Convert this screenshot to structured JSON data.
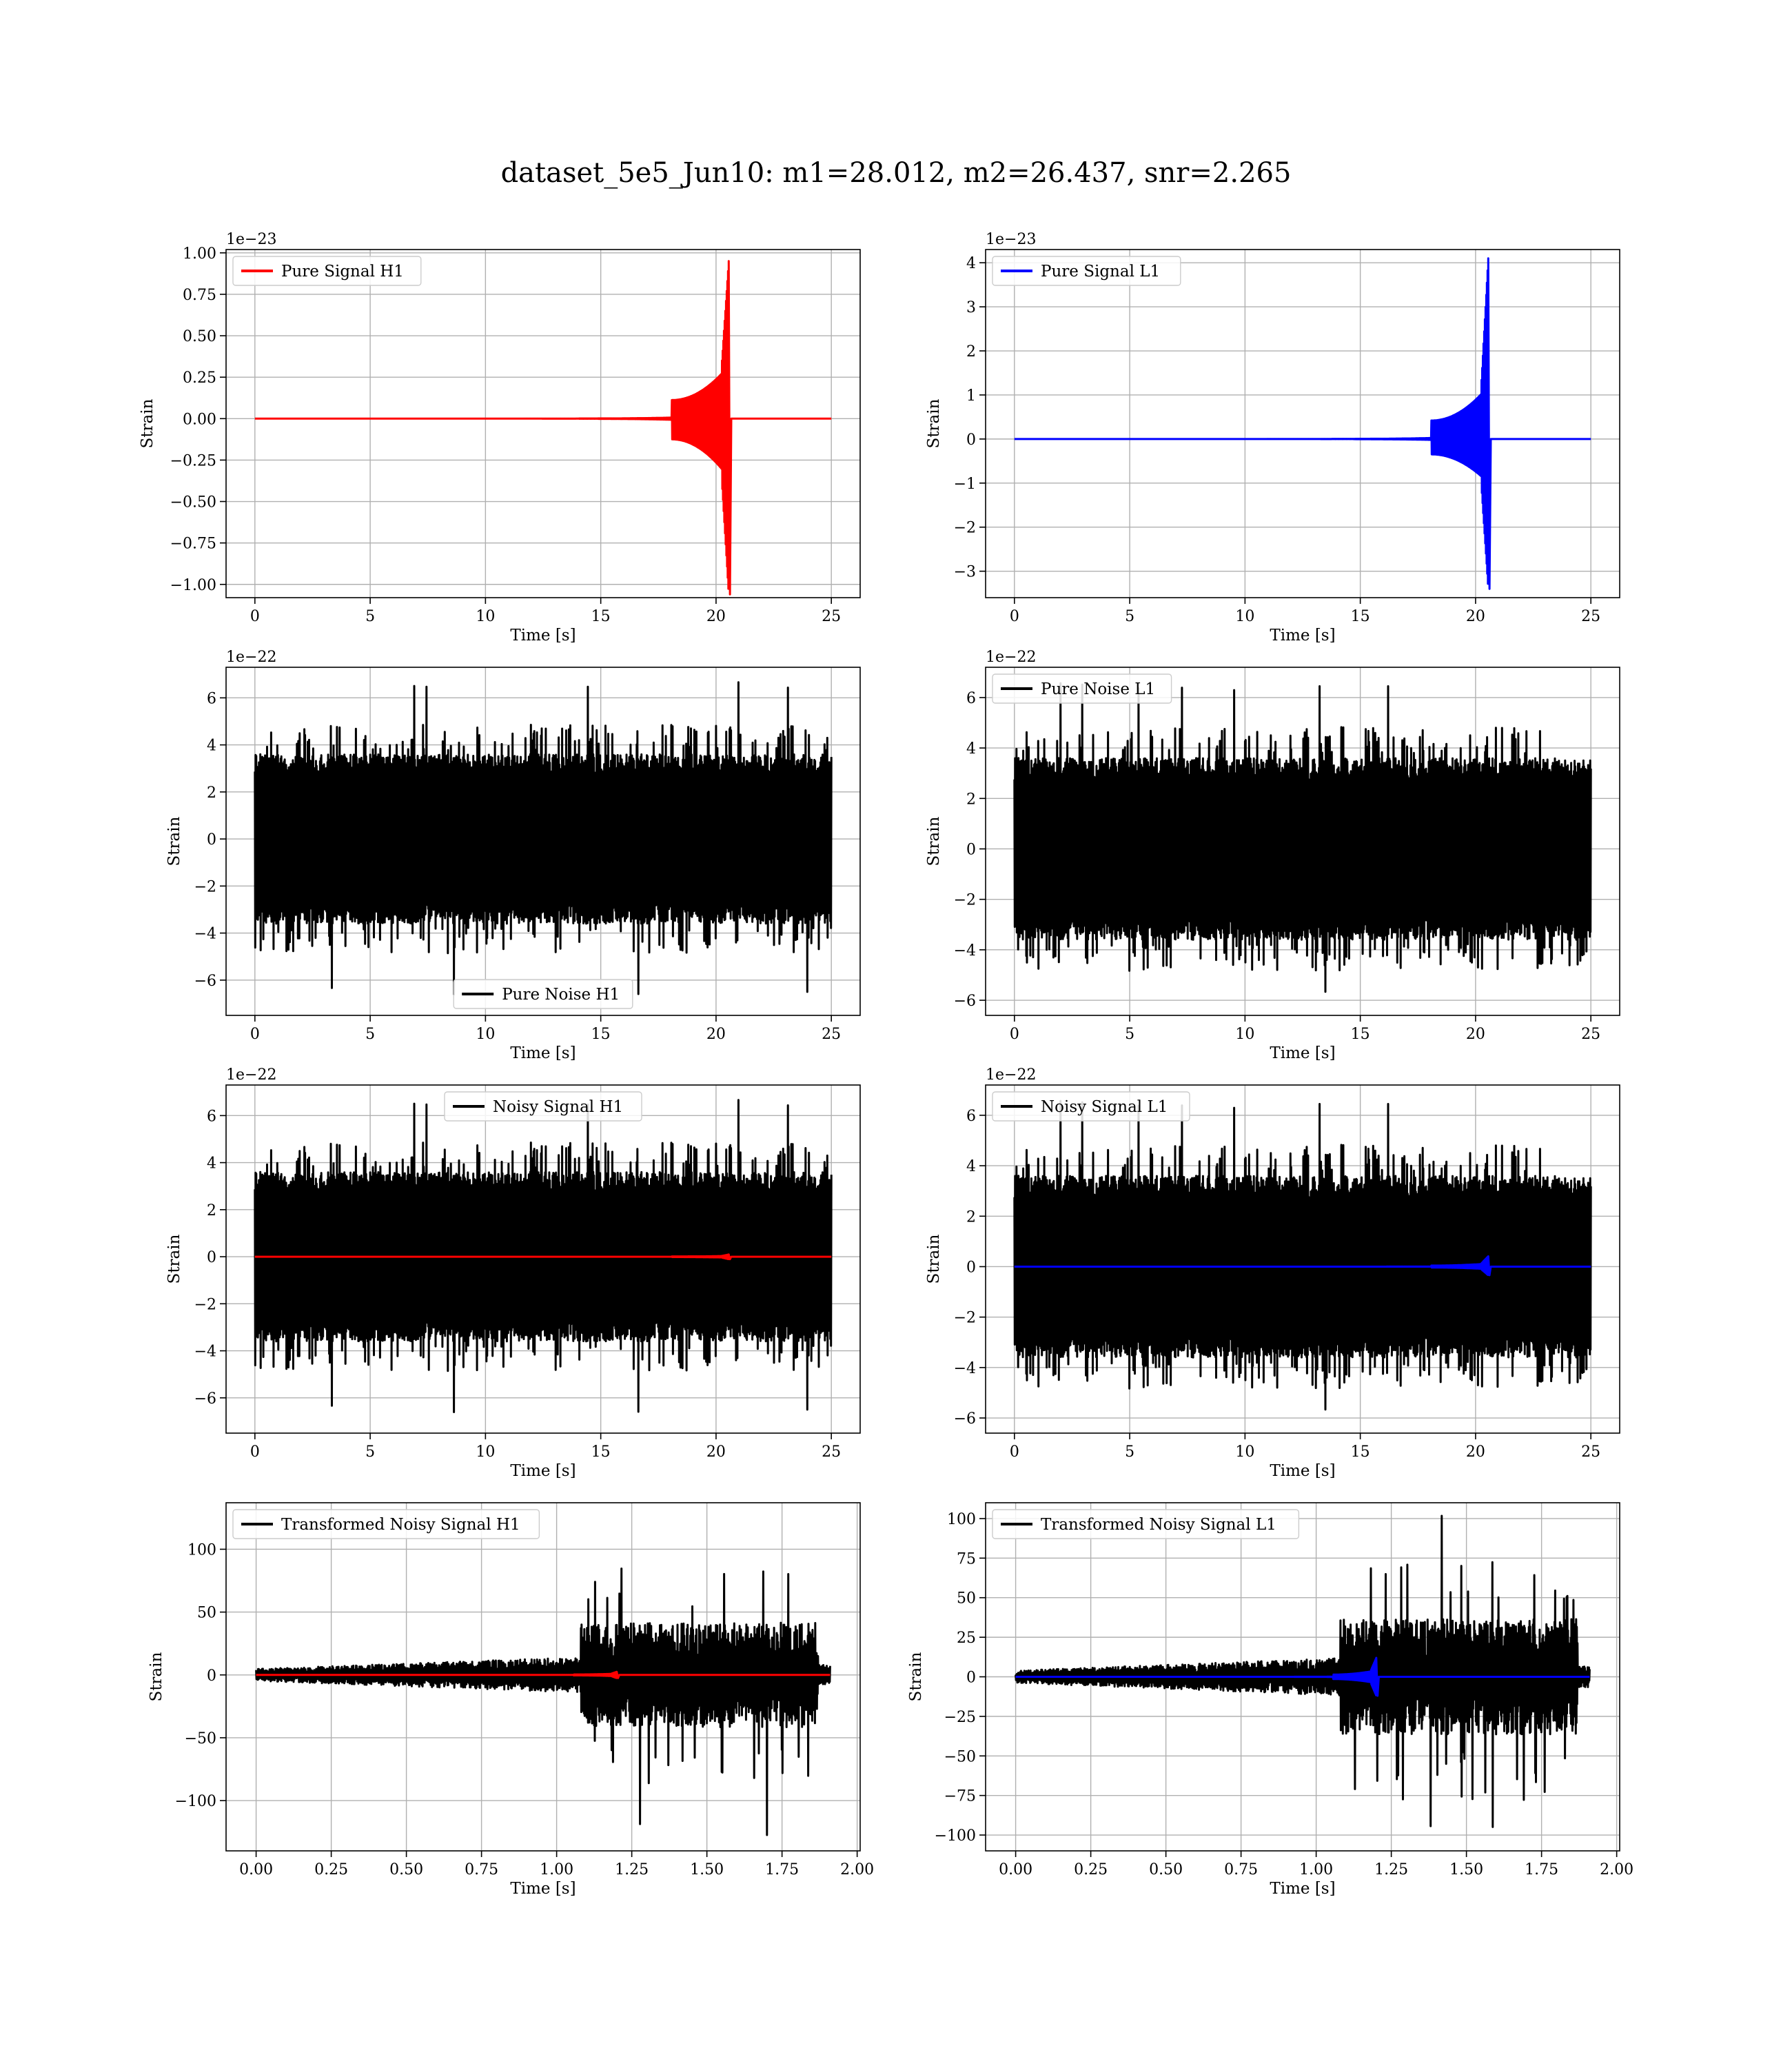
{
  "figure": {
    "title": "dataset_5e5_Jun10: m1=28.012, m2=26.437, snr=2.265",
    "background": "#ffffff"
  },
  "chart_data": [
    {
      "id": "pure-signal-h1",
      "type": "line",
      "xlabel": "Time [s]",
      "ylabel": "Strain",
      "offset_text": "1e−23",
      "xlim": [
        -1.25,
        26.25
      ],
      "ylim": [
        -1.08,
        1.02
      ],
      "xticks": [
        0,
        5,
        10,
        15,
        20,
        25
      ],
      "yticks": [
        1.0,
        0.75,
        0.5,
        0.25,
        0.0,
        -0.25,
        -0.5,
        -0.75,
        -1.0
      ],
      "ytick_labels": [
        "1.00",
        "0.75",
        "0.50",
        "0.25",
        "0.00",
        "−0.25",
        "−0.50",
        "−0.75",
        "−1.00"
      ],
      "grid": true,
      "legend": {
        "position": "upper left"
      },
      "series": [
        {
          "name": "Pure Signal H1",
          "color": "#ff0000",
          "kind": "chirp",
          "x_start": 0,
          "x_end": 25,
          "merger_time": 20.55,
          "peak_pos": 0.95,
          "peak_neg": -1.06,
          "inspiral_amp": 0.32
        }
      ]
    },
    {
      "id": "pure-signal-l1",
      "type": "line",
      "xlabel": "Time [s]",
      "ylabel": "Strain",
      "offset_text": "1e−23",
      "xlim": [
        -1.25,
        26.25
      ],
      "ylim": [
        -3.6,
        4.3
      ],
      "xticks": [
        0,
        5,
        10,
        15,
        20,
        25
      ],
      "yticks": [
        4,
        3,
        2,
        1,
        0,
        -1,
        -2,
        -3
      ],
      "ytick_labels": [
        "4",
        "3",
        "2",
        "1",
        "0",
        "−1",
        "−2",
        "−3"
      ],
      "grid": true,
      "legend": {
        "position": "upper left"
      },
      "series": [
        {
          "name": "Pure Signal L1",
          "color": "#0000ff",
          "kind": "chirp",
          "x_start": 0,
          "x_end": 25,
          "merger_time": 20.55,
          "peak_pos": 4.1,
          "peak_neg": -3.4,
          "inspiral_amp": 1.2
        }
      ]
    },
    {
      "id": "pure-noise-h1",
      "type": "line",
      "xlabel": "Time [s]",
      "ylabel": "Strain",
      "offset_text": "1e−22",
      "xlim": [
        -1.25,
        26.25
      ],
      "ylim": [
        -7.5,
        7.3
      ],
      "xticks": [
        0,
        5,
        10,
        15,
        20,
        25
      ],
      "yticks": [
        6,
        4,
        2,
        0,
        -2,
        -4,
        -6
      ],
      "ytick_labels": [
        "6",
        "4",
        "2",
        "0",
        "−2",
        "−4",
        "−6"
      ],
      "grid": true,
      "legend": {
        "position": "lower center"
      },
      "series": [
        {
          "name": "Pure Noise H1",
          "color": "#000000",
          "kind": "noise",
          "x_start": 0,
          "x_end": 25,
          "band": 3.6,
          "spike_max": 6.9,
          "spike_min": -6.7,
          "seed": 11
        }
      ]
    },
    {
      "id": "pure-noise-l1",
      "type": "line",
      "xlabel": "Time [s]",
      "ylabel": "Strain",
      "offset_text": "1e−22",
      "xlim": [
        -1.25,
        26.25
      ],
      "ylim": [
        -6.6,
        7.2
      ],
      "xticks": [
        0,
        5,
        10,
        15,
        20,
        25
      ],
      "yticks": [
        6,
        4,
        2,
        0,
        -2,
        -4,
        -6
      ],
      "ytick_labels": [
        "6",
        "4",
        "2",
        "0",
        "−2",
        "−4",
        "−6"
      ],
      "grid": true,
      "legend": {
        "position": "upper left"
      },
      "series": [
        {
          "name": "Pure Noise L1",
          "color": "#000000",
          "kind": "noise",
          "x_start": 0,
          "x_end": 25,
          "band": 3.6,
          "spike_max": 6.6,
          "spike_min": -5.9,
          "seed": 23
        }
      ]
    },
    {
      "id": "noisy-signal-h1",
      "type": "line",
      "xlabel": "Time [s]",
      "ylabel": "Strain",
      "offset_text": "1e−22",
      "xlim": [
        -1.25,
        26.25
      ],
      "ylim": [
        -7.5,
        7.3
      ],
      "xticks": [
        0,
        5,
        10,
        15,
        20,
        25
      ],
      "yticks": [
        6,
        4,
        2,
        0,
        -2,
        -4,
        -6
      ],
      "ytick_labels": [
        "6",
        "4",
        "2",
        "0",
        "−2",
        "−4",
        "−6"
      ],
      "grid": true,
      "legend": {
        "position": "upper center"
      },
      "series": [
        {
          "name": "Noisy Signal H1",
          "color": "#000000",
          "kind": "noise",
          "x_start": 0,
          "x_end": 25,
          "band": 3.6,
          "spike_max": 6.9,
          "spike_min": -6.7,
          "seed": 11
        },
        {
          "name": "",
          "color": "#ff0000",
          "kind": "chirp",
          "x_start": 0,
          "x_end": 25,
          "merger_time": 20.55,
          "peak_pos": 0.095,
          "peak_neg": -0.106,
          "inspiral_amp": 0.032
        }
      ]
    },
    {
      "id": "noisy-signal-l1",
      "type": "line",
      "xlabel": "Time [s]",
      "ylabel": "Strain",
      "offset_text": "1e−22",
      "xlim": [
        -1.25,
        26.25
      ],
      "ylim": [
        -6.6,
        7.2
      ],
      "xticks": [
        0,
        5,
        10,
        15,
        20,
        25
      ],
      "yticks": [
        6,
        4,
        2,
        0,
        -2,
        -4,
        -6
      ],
      "ytick_labels": [
        "6",
        "4",
        "2",
        "0",
        "−2",
        "−4",
        "−6"
      ],
      "grid": true,
      "legend": {
        "position": "upper left"
      },
      "series": [
        {
          "name": "Noisy Signal L1",
          "color": "#000000",
          "kind": "noise",
          "x_start": 0,
          "x_end": 25,
          "band": 3.6,
          "spike_max": 6.6,
          "spike_min": -5.9,
          "seed": 23
        },
        {
          "name": "",
          "color": "#0000ff",
          "kind": "chirp",
          "x_start": 0,
          "x_end": 25,
          "merger_time": 20.55,
          "peak_pos": 0.41,
          "peak_neg": -0.34,
          "inspiral_amp": 0.12
        }
      ]
    },
    {
      "id": "transformed-noisy-signal-h1",
      "type": "line",
      "xlabel": "Time [s]",
      "ylabel": "Strain",
      "offset_text": "",
      "xlim": [
        -0.1,
        2.01
      ],
      "ylim": [
        -140,
        137
      ],
      "xticks": [
        0.0,
        0.25,
        0.5,
        0.75,
        1.0,
        1.25,
        1.5,
        1.75,
        2.0
      ],
      "xtick_labels": [
        "0.00",
        "0.25",
        "0.50",
        "0.75",
        "1.00",
        "1.25",
        "1.50",
        "1.75",
        "2.00"
      ],
      "yticks": [
        100,
        50,
        0,
        -50,
        -100
      ],
      "ytick_labels": [
        "100",
        "50",
        "0",
        "−50",
        "−100"
      ],
      "grid": true,
      "legend": {
        "position": "upper left"
      },
      "series": [
        {
          "name": "Transformed Noisy Signal H1",
          "color": "#000000",
          "kind": "whitened",
          "x_start": 0,
          "x_end": 1.91,
          "quiet_end": 1.08,
          "loud_end": 1.87,
          "quiet_amp": 6,
          "loud_amp": 32,
          "spike_max": 124,
          "spike_min": -128,
          "seed": 5
        },
        {
          "name": "",
          "color": "#ff0000",
          "kind": "chirp",
          "x_start": 0,
          "x_end": 1.91,
          "merger_time": 1.2,
          "peak_pos": 2.5,
          "peak_neg": -2.5,
          "inspiral_amp": 1.0
        }
      ]
    },
    {
      "id": "transformed-noisy-signal-l1",
      "type": "line",
      "xlabel": "Time [s]",
      "ylabel": "Strain",
      "offset_text": "",
      "xlim": [
        -0.1,
        2.01
      ],
      "ylim": [
        -110,
        110
      ],
      "xticks": [
        0.0,
        0.25,
        0.5,
        0.75,
        1.0,
        1.25,
        1.5,
        1.75,
        2.0
      ],
      "xtick_labels": [
        "0.00",
        "0.25",
        "0.50",
        "0.75",
        "1.00",
        "1.25",
        "1.50",
        "1.75",
        "2.00"
      ],
      "yticks": [
        100,
        75,
        50,
        25,
        0,
        -25,
        -50,
        -75,
        -100
      ],
      "ytick_labels": [
        "100",
        "75",
        "50",
        "25",
        "0",
        "−25",
        "−50",
        "−75",
        "−100"
      ],
      "grid": true,
      "legend": {
        "position": "upper left"
      },
      "series": [
        {
          "name": "Transformed Noisy Signal L1",
          "color": "#000000",
          "kind": "whitened",
          "x_start": 0,
          "x_end": 1.91,
          "quiet_end": 1.08,
          "loud_end": 1.87,
          "quiet_amp": 5,
          "loud_amp": 28,
          "spike_max": 103,
          "spike_min": -99,
          "seed": 9
        },
        {
          "name": "",
          "color": "#0000ff",
          "kind": "chirp",
          "x_start": 0,
          "x_end": 1.91,
          "merger_time": 1.2,
          "peak_pos": 12,
          "peak_neg": -12,
          "inspiral_amp": 4
        }
      ]
    }
  ]
}
